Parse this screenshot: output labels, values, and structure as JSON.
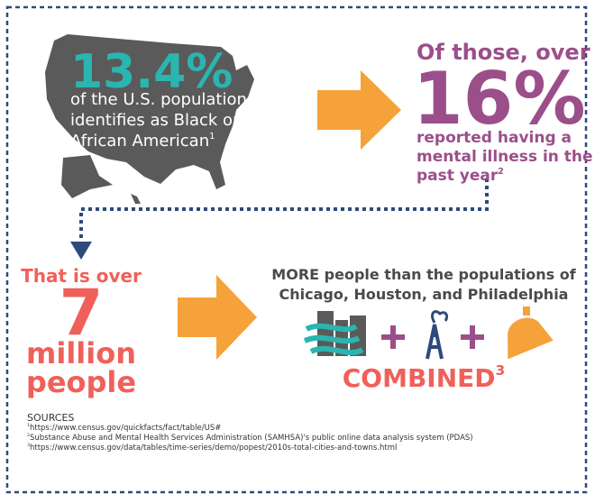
{
  "stat_1": {
    "value": "13.4%",
    "lines": [
      "of the U.S. population",
      "identifies as Black or",
      "African American"
    ],
    "note": "1"
  },
  "stat_2": {
    "intro": "Of those, over",
    "value": "16%",
    "lines": [
      "reported having a",
      "mental illness in the",
      "past year"
    ],
    "note": "2"
  },
  "stat_3": {
    "intro": "That is over",
    "value": "7",
    "lines": [
      "million",
      "people"
    ]
  },
  "comparison": {
    "lines": [
      "MORE people than the populations of",
      "Chicago, Houston, and Philadelphia"
    ],
    "result": "COMBINED",
    "note": "3"
  },
  "sources": {
    "title": "SOURCES",
    "items": [
      {
        "note": "1",
        "text": "https://www.census.gov/quickfacts/fact/table/US#"
      },
      {
        "note": "2",
        "text": "Substance Abuse and Mental Health Services Administration (SAMHSA)'s public online data analysis system (PDAS)"
      },
      {
        "note": "3",
        "text": "https://www.census.gov/data/tables/time-series/demo/popest/2010s-total-cities-and-towns.html"
      }
    ]
  }
}
